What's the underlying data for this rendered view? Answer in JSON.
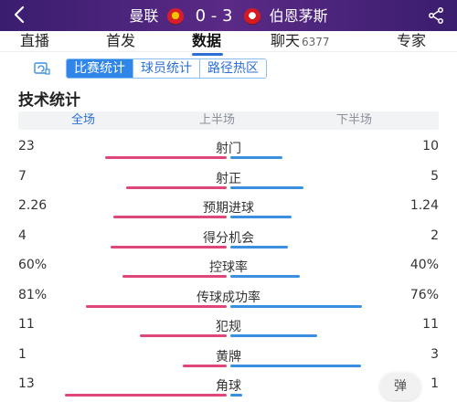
{
  "header": {
    "back_icon": "chevron-left-icon",
    "home_team": "曼联",
    "score": "0 - 3",
    "away_team": "伯恩茅斯",
    "share_icon": "share-icon"
  },
  "tabs": [
    {
      "label": "直播"
    },
    {
      "label": "首发"
    },
    {
      "label": "数据"
    },
    {
      "label": "聊天",
      "count": "6377"
    },
    {
      "label": "专家"
    }
  ],
  "active_tab": "数据",
  "subtabs": [
    {
      "label": "比赛统计"
    },
    {
      "label": "球员统计"
    },
    {
      "label": "路径热区"
    }
  ],
  "active_subtab": "比赛统计",
  "section_title": "技术统计",
  "periods": [
    "全场",
    "上半场",
    "下半场"
  ],
  "active_period": "全场",
  "colors": {
    "home": "#e0457b",
    "away": "#3a8fe0",
    "accent": "#2b6fd6"
  },
  "stats": [
    {
      "label": "射门",
      "home": "23",
      "away": "10",
      "home_ratio": 0.7,
      "away_ratio": 0.3
    },
    {
      "label": "射正",
      "home": "7",
      "away": "5",
      "home_ratio": 0.58,
      "away_ratio": 0.42
    },
    {
      "label": "预期进球",
      "home": "2.26",
      "away": "1.24",
      "home_ratio": 0.65,
      "away_ratio": 0.35
    },
    {
      "label": "得分机会",
      "home": "4",
      "away": "2",
      "home_ratio": 0.67,
      "away_ratio": 0.33
    },
    {
      "label": "控球率",
      "home": "60%",
      "away": "40%",
      "home_ratio": 0.6,
      "away_ratio": 0.4
    },
    {
      "label": "传球成功率",
      "home": "81%",
      "away": "76%",
      "home_ratio": 0.81,
      "away_ratio": 0.76
    },
    {
      "label": "犯规",
      "home": "11",
      "away": "11",
      "home_ratio": 0.5,
      "away_ratio": 0.5
    },
    {
      "label": "黄牌",
      "home": "1",
      "away": "3",
      "home_ratio": 0.25,
      "away_ratio": 0.75
    },
    {
      "label": "角球",
      "home": "13",
      "away": "1",
      "home_ratio": 0.93,
      "away_ratio": 0.07
    }
  ],
  "danmu_label": "弹"
}
